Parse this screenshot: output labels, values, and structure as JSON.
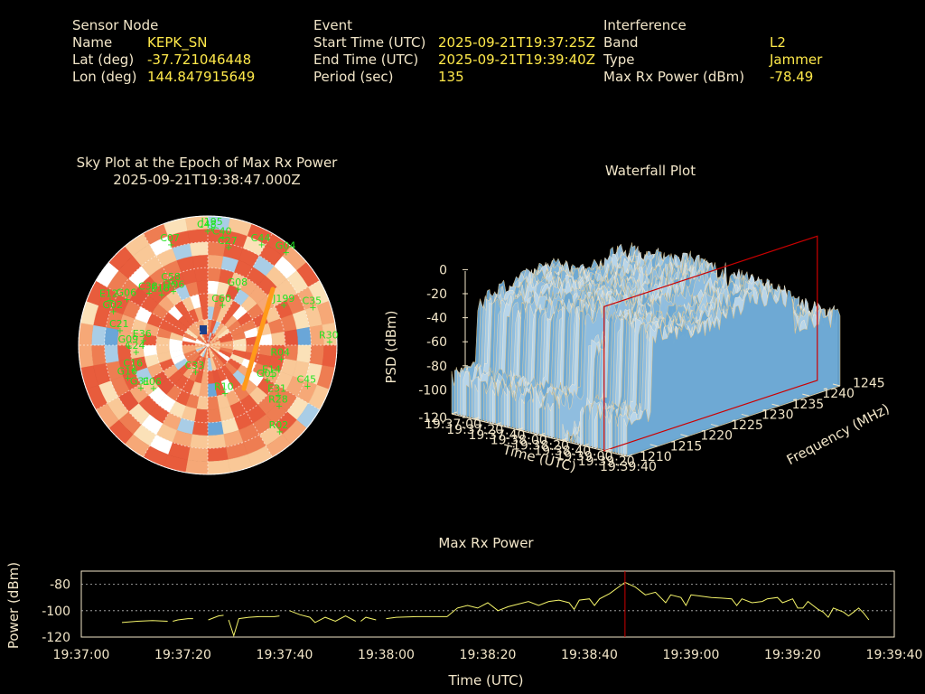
{
  "header": {
    "sensor": {
      "heading": "Sensor Node",
      "name_label": "Name",
      "name": "KEPK_SN",
      "lat_label": "Lat (deg)",
      "lat": "-37.721046448",
      "lon_label": "Lon (deg)",
      "lon": "144.847915649"
    },
    "event": {
      "heading": "Event",
      "start_label": "Start Time (UTC)",
      "start": "2025-09-21T19:37:25Z",
      "end_label": "End Time (UTC)",
      "end": "2025-09-21T19:39:40Z",
      "period_label": "Period (sec)",
      "period": "135"
    },
    "interference": {
      "heading": "Interference",
      "band_label": "Band",
      "band": "L2",
      "type_label": "Type",
      "type": "Jammer",
      "power_label": "Max Rx Power (dBm)",
      "power": "-78.49"
    }
  },
  "colors": {
    "text": "#f2e6c9",
    "value": "#ffe94a",
    "satellite": "#22e422",
    "trace": "#f5f56a",
    "marker": "#cc0000",
    "grid": "#ffffff"
  },
  "chart_data": [
    {
      "type": "scatter",
      "title": "Sky Plot at the Epoch of Max Rx Power",
      "subtitle": "2025-09-21T19:38:47.000Z",
      "satellites": [
        {
          "id": "C07",
          "az": 340,
          "el": 15
        },
        {
          "id": "C48",
          "az": 0,
          "el": 10
        },
        {
          "id": "J195",
          "az": 2,
          "el": 8
        },
        {
          "id": "C40",
          "az": 8,
          "el": 14
        },
        {
          "id": "C27",
          "az": 12,
          "el": 20
        },
        {
          "id": "C44",
          "az": 28,
          "el": 10
        },
        {
          "id": "G04",
          "az": 40,
          "el": 5
        },
        {
          "id": "C38",
          "az": 312,
          "el": 35
        },
        {
          "id": "C58",
          "az": 330,
          "el": 40
        },
        {
          "id": "E18",
          "az": 318,
          "el": 42
        },
        {
          "id": "J196",
          "az": 328,
          "el": 45
        },
        {
          "id": "G08",
          "az": 28,
          "el": 45
        },
        {
          "id": "J199",
          "az": 62,
          "el": 30
        },
        {
          "id": "C35",
          "az": 70,
          "el": 12
        },
        {
          "id": "C60",
          "az": 20,
          "el": 60
        },
        {
          "id": "E12",
          "az": 295,
          "el": 15
        },
        {
          "id": "G06",
          "az": 300,
          "el": 25
        },
        {
          "id": "G02",
          "az": 290,
          "el": 20
        },
        {
          "id": "C21",
          "az": 280,
          "el": 28
        },
        {
          "id": "E36",
          "az": 275,
          "el": 45
        },
        {
          "id": "G09",
          "az": 270,
          "el": 35
        },
        {
          "id": "C24",
          "az": 265,
          "el": 40
        },
        {
          "id": "R30",
          "az": 88,
          "el": 5
        },
        {
          "id": "R04",
          "az": 100,
          "el": 38
        },
        {
          "id": "E14",
          "az": 115,
          "el": 40
        },
        {
          "id": "G05",
          "az": 120,
          "el": 42
        },
        {
          "id": "C45",
          "az": 112,
          "el": 15
        },
        {
          "id": "E31",
          "az": 125,
          "el": 30
        },
        {
          "id": "R28",
          "az": 130,
          "el": 25
        },
        {
          "id": "R10",
          "az": 160,
          "el": 55
        },
        {
          "id": "G31",
          "az": 238,
          "el": 35
        },
        {
          "id": "E06",
          "az": 232,
          "el": 42
        },
        {
          "id": "C33",
          "az": 205,
          "el": 70
        },
        {
          "id": "G16",
          "az": 248,
          "el": 30
        },
        {
          "id": "C16",
          "az": 252,
          "el": 36
        },
        {
          "id": "R02",
          "az": 140,
          "el": 12
        }
      ]
    },
    {
      "type": "area",
      "title": "Waterfall Plot",
      "xlabel": "Time (UTC)",
      "ylabel": "Frequency (MHz)",
      "zlabel": "PSD (dBm)",
      "zticks": [
        0,
        -20,
        -40,
        -60,
        -80,
        -100,
        -120
      ],
      "freq_ticks": [
        1210,
        1215,
        1220,
        1225,
        1230,
        1235,
        1240,
        1245
      ],
      "time_ticks": [
        "19:37:00",
        "19:37:20",
        "19:37:40",
        "19:38:00",
        "19:38:20",
        "19:38:40",
        "19:39:00",
        "19:39:20",
        "19:39:40"
      ],
      "zlim": [
        -120,
        0
      ]
    },
    {
      "type": "line",
      "title": "Max Rx Power",
      "xlabel": "Time (UTC)",
      "ylabel": "Power (dBm)",
      "ylim": [
        -120,
        -70
      ],
      "yticks": [
        -80,
        -100,
        -120
      ],
      "x_ticks": [
        "19:37:00",
        "19:37:20",
        "19:37:40",
        "19:38:00",
        "19:38:20",
        "19:38:40",
        "19:39:00",
        "19:39:20",
        "19:39:40"
      ],
      "x_range_sec": [
        0,
        160
      ],
      "marker_sec": 107,
      "series": [
        {
          "segments": [
            [
              [
                8,
                -109
              ],
              [
                11,
                -108
              ],
              [
                14,
                -107.5
              ],
              [
                17,
                -108
              ]
            ],
            [
              [
                18,
                -108
              ],
              [
                19,
                -107
              ],
              [
                21,
                -106
              ],
              [
                22,
                -106
              ]
            ],
            [
              [
                25,
                -107
              ],
              [
                27,
                -104
              ],
              [
                28,
                -103.5
              ]
            ],
            [
              [
                29,
                -107
              ],
              [
                30,
                -119
              ],
              [
                31,
                -106
              ],
              [
                33,
                -105
              ],
              [
                35,
                -104.5
              ],
              [
                38,
                -104.5
              ],
              [
                39,
                -104
              ]
            ],
            [
              [
                41,
                -100
              ],
              [
                43,
                -103
              ],
              [
                45,
                -105
              ],
              [
                46,
                -109
              ],
              [
                48,
                -105
              ],
              [
                50,
                -108
              ],
              [
                52,
                -104
              ],
              [
                54,
                -108
              ]
            ],
            [
              [
                55,
                -108
              ],
              [
                56,
                -105
              ],
              [
                58,
                -107
              ]
            ],
            [
              [
                60,
                -106
              ],
              [
                62,
                -105
              ],
              [
                66,
                -104.5
              ],
              [
                72,
                -104.5
              ]
            ],
            [
              [
                72,
                -104.5
              ],
              [
                74,
                -98
              ],
              [
                76,
                -96
              ],
              [
                78,
                -98
              ],
              [
                80,
                -94
              ],
              [
                82,
                -100
              ],
              [
                84,
                -97
              ],
              [
                86,
                -95
              ],
              [
                88,
                -93
              ],
              [
                90,
                -96
              ],
              [
                92,
                -93
              ],
              [
                94,
                -92
              ],
              [
                96,
                -94
              ],
              [
                97,
                -99
              ],
              [
                98,
                -92
              ],
              [
                100,
                -91
              ],
              [
                101,
                -96
              ],
              [
                102,
                -91
              ],
              [
                104,
                -87
              ],
              [
                107,
                -78.49
              ],
              [
                109,
                -82
              ],
              [
                111,
                -88
              ],
              [
                113,
                -86
              ],
              [
                115,
                -94
              ],
              [
                116,
                -88
              ],
              [
                118,
                -90
              ],
              [
                119,
                -96
              ],
              [
                120,
                -88
              ],
              [
                122,
                -89
              ],
              [
                124,
                -90
              ],
              [
                126,
                -90.5
              ],
              [
                128,
                -91
              ],
              [
                129,
                -96
              ],
              [
                130,
                -91
              ],
              [
                132,
                -94
              ],
              [
                134,
                -93
              ],
              [
                135,
                -91
              ],
              [
                137,
                -90
              ],
              [
                138,
                -94
              ],
              [
                140,
                -91
              ],
              [
                141,
                -98
              ],
              [
                142,
                -98
              ],
              [
                143,
                -93
              ],
              [
                144,
                -96
              ],
              [
                145,
                -99
              ],
              [
                146,
                -101
              ],
              [
                147,
                -105
              ],
              [
                148,
                -98
              ],
              [
                150,
                -101
              ],
              [
                151,
                -104
              ],
              [
                152,
                -101
              ],
              [
                153,
                -98
              ],
              [
                154,
                -102
              ],
              [
                155,
                -107
              ]
            ]
          ]
        }
      ]
    }
  ]
}
